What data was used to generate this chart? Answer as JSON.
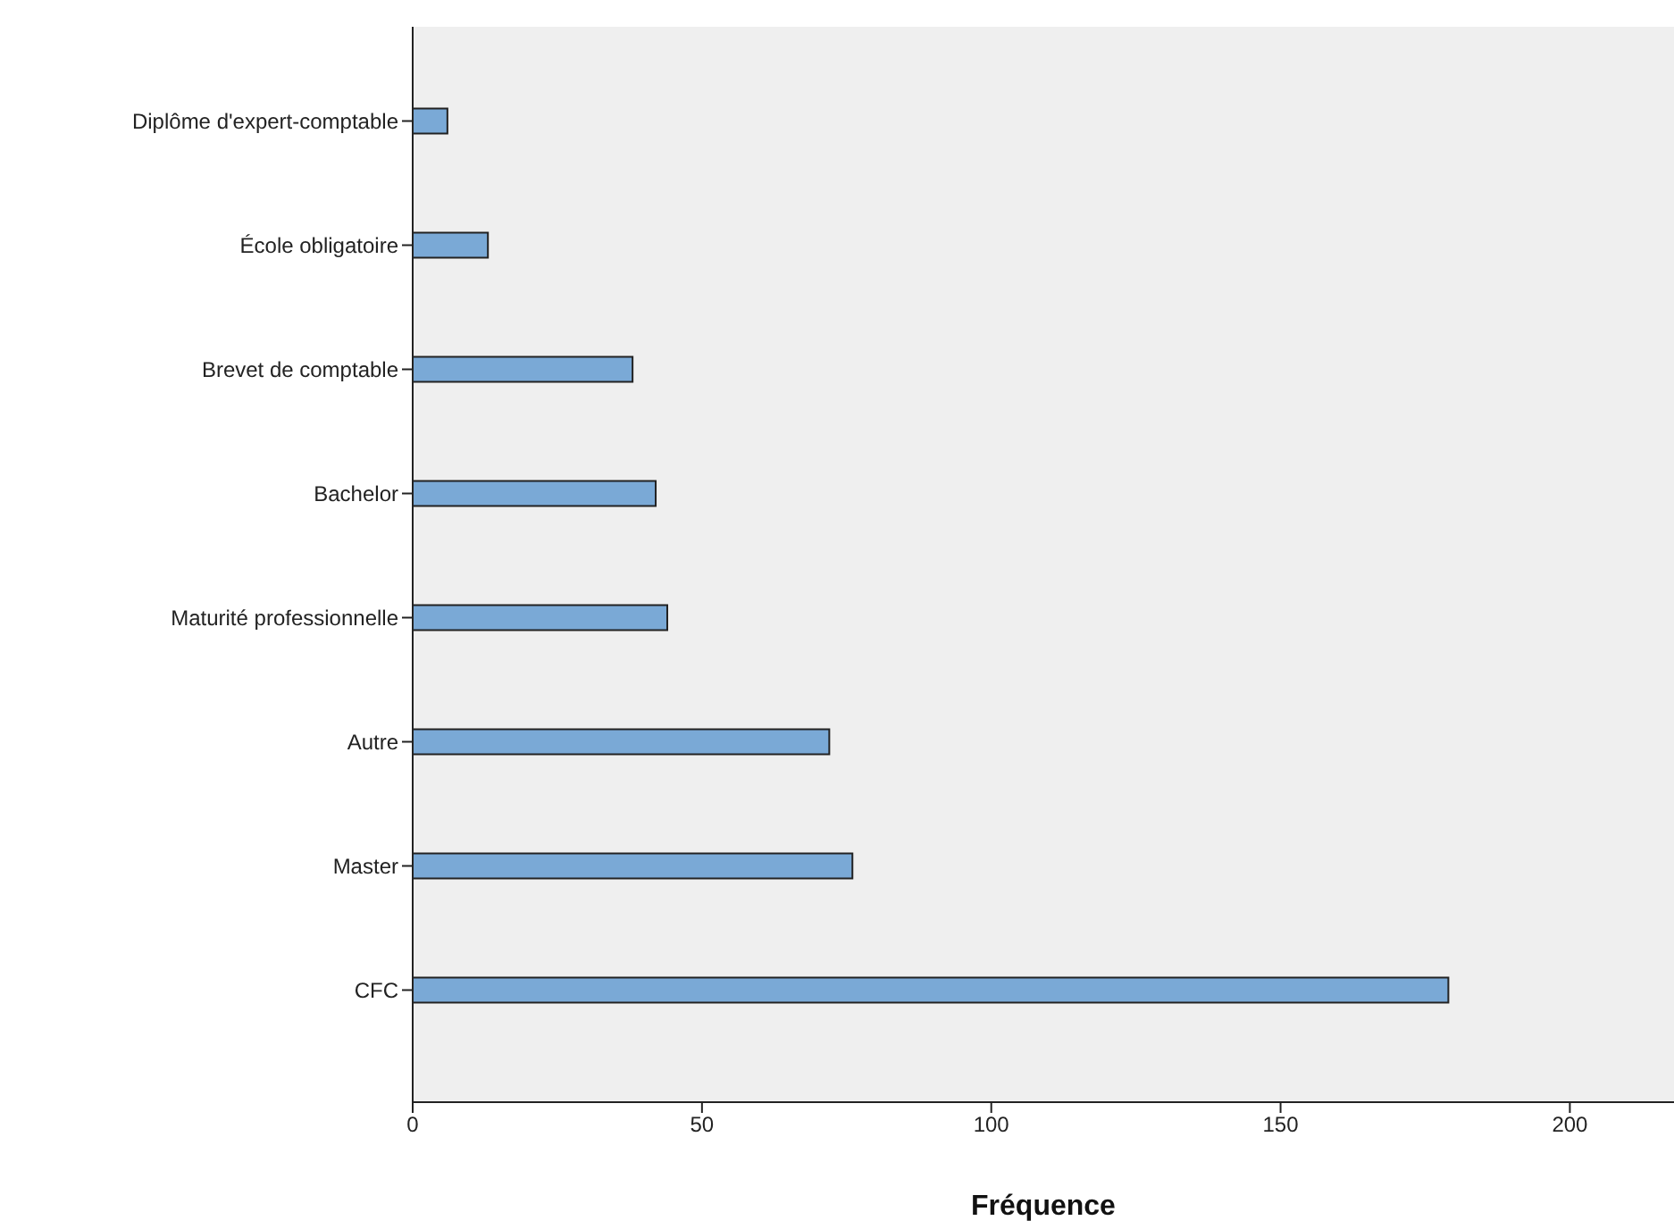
{
  "chart_data": {
    "type": "bar",
    "orientation": "horizontal",
    "xlabel": "Fréquence",
    "categories": [
      "Diplôme d'expert-comptable",
      "École obligatoire",
      "Brevet de comptable",
      "Bachelor",
      "Maturité professionnelle",
      "Autre",
      "Master",
      "CFC"
    ],
    "values": [
      6,
      13,
      38,
      42,
      44,
      72,
      76,
      179
    ],
    "color": "#7aa9d6",
    "xlim": [
      0,
      218
    ],
    "xticks": [
      0,
      50,
      100,
      150,
      200
    ],
    "grid": false,
    "legend": false
  }
}
